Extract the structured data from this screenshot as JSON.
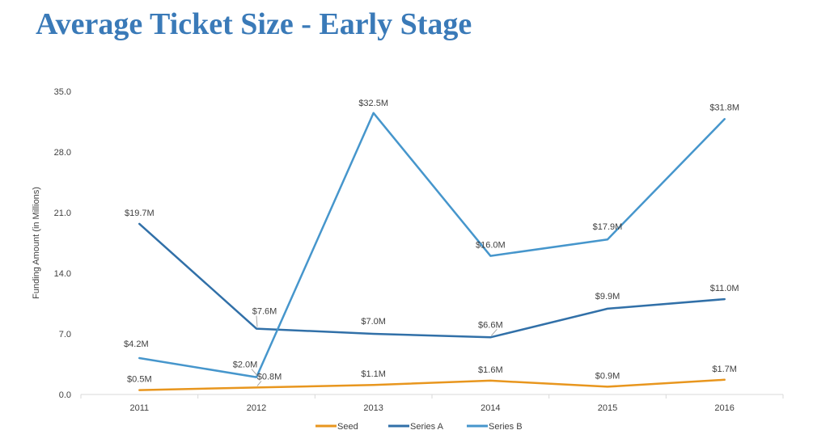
{
  "page": {
    "title": "Average Ticket Size - Early Stage"
  },
  "colors": {
    "title": "#3a7ab8",
    "axis": "#d9d9d9",
    "text": "#404040"
  },
  "chart_data": {
    "type": "line",
    "title": "Average Ticket Size - Early Stage",
    "xlabel": "",
    "ylabel": "Funding Amount (in Millions)",
    "ylim": [
      0,
      35
    ],
    "yticks": [
      "0.0",
      "7.0",
      "14.0",
      "21.0",
      "28.0",
      "35.0"
    ],
    "categories": [
      "2011",
      "2012",
      "2013",
      "2014",
      "2015",
      "2016"
    ],
    "legend_position": "bottom",
    "grid": false,
    "series": [
      {
        "name": "Seed",
        "color": "#e8961e",
        "values": [
          0.5,
          0.8,
          1.1,
          1.6,
          0.9,
          1.7
        ],
        "labels": [
          "$0.5M",
          "$0.8M",
          "$1.1M",
          "$1.6M",
          "$0.9M",
          "$1.7M"
        ]
      },
      {
        "name": "Series A",
        "color": "#3170a8",
        "values": [
          19.7,
          7.6,
          7.0,
          6.6,
          9.9,
          11.0
        ],
        "labels": [
          "$19.7M",
          "$7.6M",
          "$7.0M",
          "$6.6M",
          "$9.9M",
          "$11.0M"
        ]
      },
      {
        "name": "Series B",
        "color": "#4696cc",
        "values": [
          4.2,
          2.0,
          32.5,
          16.0,
          17.9,
          31.8
        ],
        "labels": [
          "$4.2M",
          "$2.0M",
          "$32.5M",
          "$16.0M",
          "$17.9M",
          "$31.8M"
        ]
      }
    ]
  }
}
